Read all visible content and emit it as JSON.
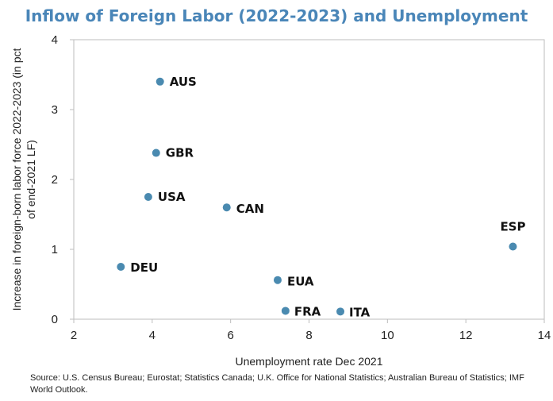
{
  "chart_data": {
    "type": "scatter",
    "title": "Inflow of Foreign Labor (2022-2023) and Unemployment",
    "xlabel": "Unemployment rate Dec 2021",
    "ylabel_lines": [
      "Increase in foreign-born labor force 2022-2023  (in pct",
      "of end-2021 LF)"
    ],
    "xlim": [
      2,
      14
    ],
    "ylim": [
      0,
      4
    ],
    "xticks": [
      2,
      4,
      6,
      8,
      10,
      12,
      14
    ],
    "yticks": [
      0,
      1,
      2,
      3,
      4
    ],
    "grid": false,
    "legend": "none",
    "marker_color": "#4a8ab0",
    "points": [
      {
        "label": "AUS",
        "x": 4.2,
        "y": 3.4,
        "label_color": "#111111"
      },
      {
        "label": "GBR",
        "x": 4.1,
        "y": 2.38,
        "label_color": "#111111"
      },
      {
        "label": "USA",
        "x": 3.9,
        "y": 1.75,
        "label_color": "#e02020"
      },
      {
        "label": "CAN",
        "x": 5.9,
        "y": 1.6,
        "label_color": "#111111"
      },
      {
        "label": "ESP",
        "x": 13.2,
        "y": 1.04,
        "label_color": "#111111"
      },
      {
        "label": "DEU",
        "x": 3.2,
        "y": 0.75,
        "label_color": "#111111"
      },
      {
        "label": "EUA",
        "x": 7.2,
        "y": 0.56,
        "label_color": "#111111"
      },
      {
        "label": "FRA",
        "x": 7.4,
        "y": 0.12,
        "label_color": "#111111"
      },
      {
        "label": "ITA",
        "x": 8.8,
        "y": 0.11,
        "label_color": "#111111"
      }
    ]
  },
  "source_note": "Source: U.S. Census Bureau; Eurostat; Statistics Canada; U.K. Office for National Statistics; Australian Bureau of Statistics; IMF World Outlook."
}
